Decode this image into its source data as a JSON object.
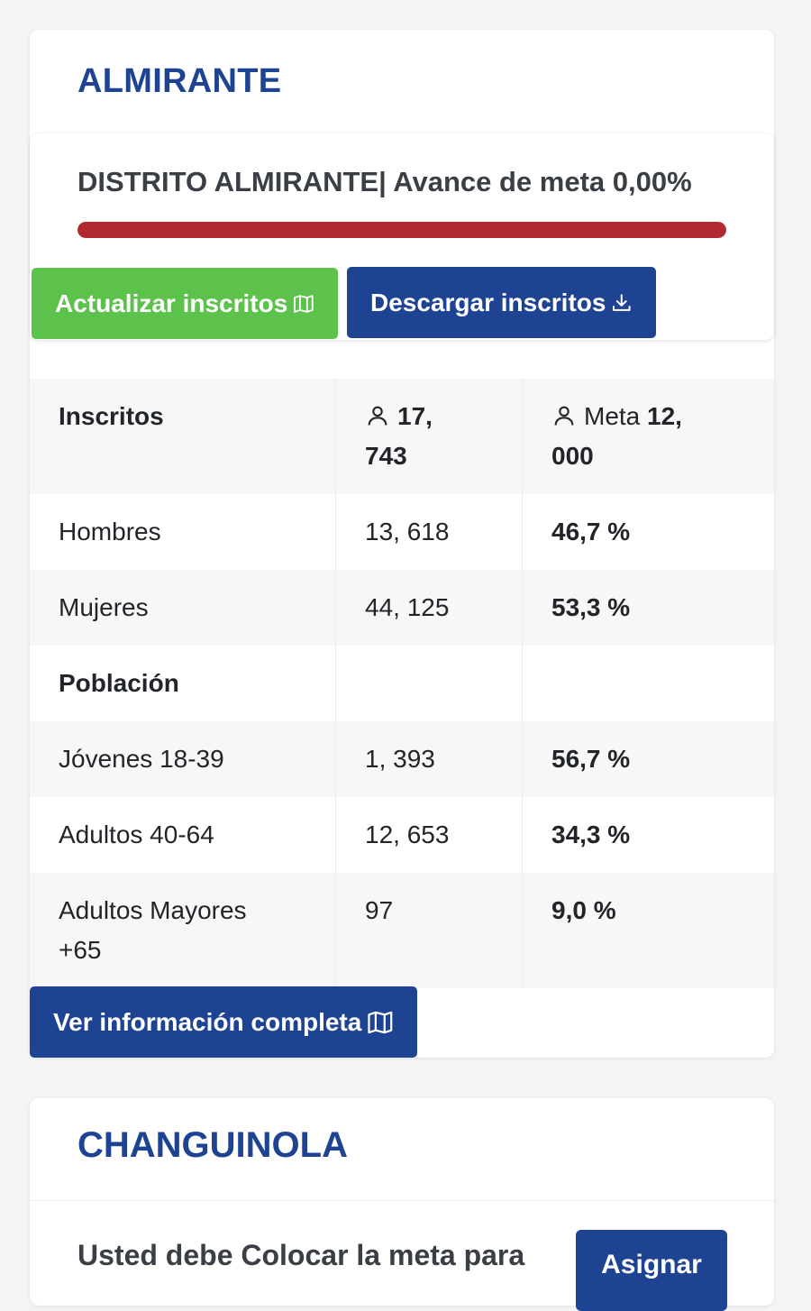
{
  "card1": {
    "title": "ALMIRANTE",
    "progress_title": "DISTRITO ALMIRANTE| Avance de meta 0,00%",
    "progress_color": "#b02a30",
    "progress_fraction": 1.0,
    "update_button": "Actualizar inscritos",
    "download_button": "Descargar inscritos",
    "info_button": "Ver información completa",
    "table": {
      "header_label": "Inscritos",
      "header_value_line1": "17,",
      "header_value_line2": "743",
      "header_meta_prefix": "Meta",
      "header_meta_line1": "12,",
      "header_meta_line2": "000",
      "rows": [
        {
          "label": "Hombres",
          "value": "13, 618",
          "percent": "46,7 %"
        },
        {
          "label": "Mujeres",
          "value": "44, 125",
          "percent": "53,3 %"
        }
      ],
      "section_label": "Población",
      "pop_rows": [
        {
          "label": "Jóvenes 18-39",
          "value": "1, 393",
          "percent": "56,7 %"
        },
        {
          "label": "Adultos 40-64",
          "value": "12, 653",
          "percent": "34,3 %"
        },
        {
          "label_line1": "Adultos Mayores",
          "label_line2": "+65",
          "value": "97",
          "percent": "9,0 %"
        }
      ]
    }
  },
  "card2": {
    "title": "CHANGUINOLA",
    "message": "Usted debe Colocar la meta para",
    "assign_button": "Asignar"
  },
  "colors": {
    "brand_blue": "#1f4393",
    "success_green": "#5cc24b",
    "danger_red": "#b02a30"
  },
  "icons": [
    "map-icon",
    "download-icon",
    "person-icon"
  ]
}
